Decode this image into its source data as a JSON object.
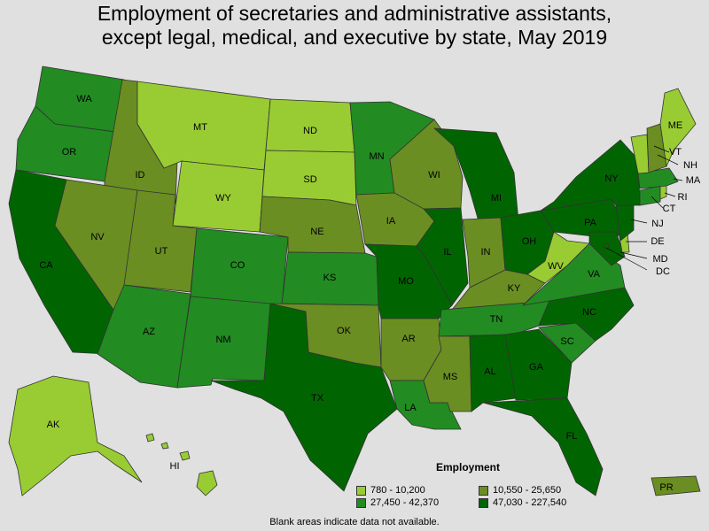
{
  "title_line1": "Employment of secretaries and administrative assistants,",
  "title_line2": "except legal, medical, and executive by state, May 2019",
  "legend": {
    "title": "Employment",
    "items": [
      {
        "label": "780 - 10,200",
        "color": "#99cc33"
      },
      {
        "label": "10,550 - 25,650",
        "color": "#6b8e23"
      },
      {
        "label": "27,450 - 42,370",
        "color": "#228b22"
      },
      {
        "label": "47,030 - 227,540",
        "color": "#006400"
      }
    ]
  },
  "footnote": "Blank areas indicate data not available.",
  "states": {
    "WA": "WA",
    "OR": "OR",
    "CA": "CA",
    "ID": "ID",
    "NV": "NV",
    "MT": "MT",
    "WY": "WY",
    "UT": "UT",
    "AZ": "AZ",
    "CO": "CO",
    "NM": "NM",
    "ND": "ND",
    "SD": "SD",
    "NE": "NE",
    "KS": "KS",
    "OK": "OK",
    "TX": "TX",
    "MN": "MN",
    "IA": "IA",
    "MO": "MO",
    "AR": "AR",
    "LA": "LA",
    "WI": "WI",
    "IL": "IL",
    "MI": "MI",
    "IN": "IN",
    "OH": "OH",
    "KY": "KY",
    "TN": "TN",
    "MS": "MS",
    "AL": "AL",
    "GA": "GA",
    "FL": "FL",
    "SC": "SC",
    "NC": "NC",
    "VA": "VA",
    "WV": "WV",
    "PA": "PA",
    "NY": "NY",
    "ME": "ME",
    "VT": "VT",
    "NH": "NH",
    "MA": "MA",
    "RI": "RI",
    "CT": "CT",
    "NJ": "NJ",
    "DE": "DE",
    "MD": "MD",
    "DC": "DC",
    "AK": "AK",
    "HI": "HI",
    "PR": "PR"
  }
}
